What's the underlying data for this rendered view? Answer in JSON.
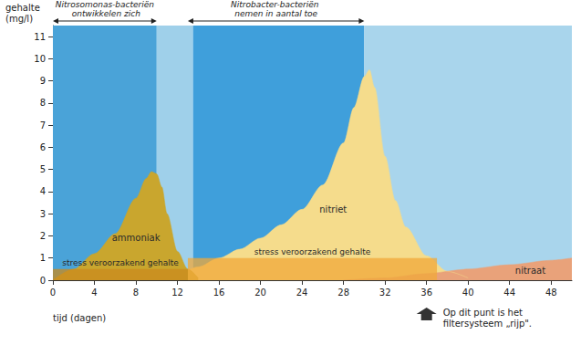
{
  "chart_data": {
    "type": "area",
    "x_label": "tijd (dagen)",
    "y_label": "gehalte (mg/l)",
    "xlim": [
      0,
      50
    ],
    "xticks": [
      0,
      4,
      8,
      12,
      16,
      20,
      24,
      28,
      32,
      36,
      40,
      44,
      48
    ],
    "ylim": [
      0,
      11.5
    ],
    "yticks": [
      0,
      1,
      2,
      3,
      4,
      5,
      6,
      7,
      8,
      9,
      10,
      11
    ],
    "grid": false,
    "phases": [
      {
        "x": [
          0,
          10
        ],
        "color": "#4aa3d8"
      },
      {
        "x": [
          10,
          13.5
        ],
        "color": "#9fd0ea"
      },
      {
        "x": [
          13.5,
          30
        ],
        "color": "#3f9fdb"
      },
      {
        "x": [
          30,
          50
        ],
        "color": "#a9d5ec"
      }
    ],
    "series": [
      {
        "name": "ammoniak",
        "color": "#c9a62e",
        "x": [
          0,
          2,
          4,
          6,
          8,
          9,
          9.5,
          10,
          10.5,
          11,
          12,
          13,
          14
        ],
        "values": [
          0,
          0.5,
          1.2,
          2.1,
          3.7,
          4.6,
          4.9,
          4.8,
          4.2,
          3.0,
          1.3,
          0.5,
          0.1
        ]
      },
      {
        "name": "nitriet",
        "color": "#f5dc8c",
        "x": [
          8,
          10,
          12,
          14,
          16,
          18,
          20,
          22,
          24,
          26,
          28,
          29,
          30,
          30.5,
          31,
          32,
          33,
          34,
          36,
          38,
          40
        ],
        "values": [
          0,
          0.1,
          0.3,
          0.6,
          1.0,
          1.4,
          1.9,
          2.5,
          3.2,
          4.3,
          6.2,
          7.8,
          9.2,
          9.5,
          8.7,
          5.6,
          3.6,
          2.4,
          1.1,
          0.4,
          0.1
        ]
      },
      {
        "name": "nitraat",
        "color": "#e9a27a",
        "x": [
          28,
          32,
          36,
          40,
          44,
          48,
          50
        ],
        "values": [
          0,
          0.1,
          0.3,
          0.5,
          0.7,
          0.9,
          1.0
        ]
      }
    ],
    "stress_levels": [
      {
        "label": "stress veroorzakend gehalte",
        "value": 0.5,
        "x": [
          0,
          13
        ],
        "color": "#c98a1e"
      },
      {
        "label": "stress veroorzakend gehalte",
        "value": 1.0,
        "x": [
          13,
          37
        ],
        "color": "#f0a83a"
      }
    ],
    "annotations": [
      {
        "text": "Nitrosomonas-bacteriën ontwikkelen zich",
        "x": [
          0,
          10
        ]
      },
      {
        "text": "Nitrobacter-bacteriën nemen in aantal toe",
        "x": [
          13,
          30
        ]
      },
      {
        "text": "Op dit punt is het filtersysteem „rijp\".",
        "x": 36
      }
    ]
  }
}
